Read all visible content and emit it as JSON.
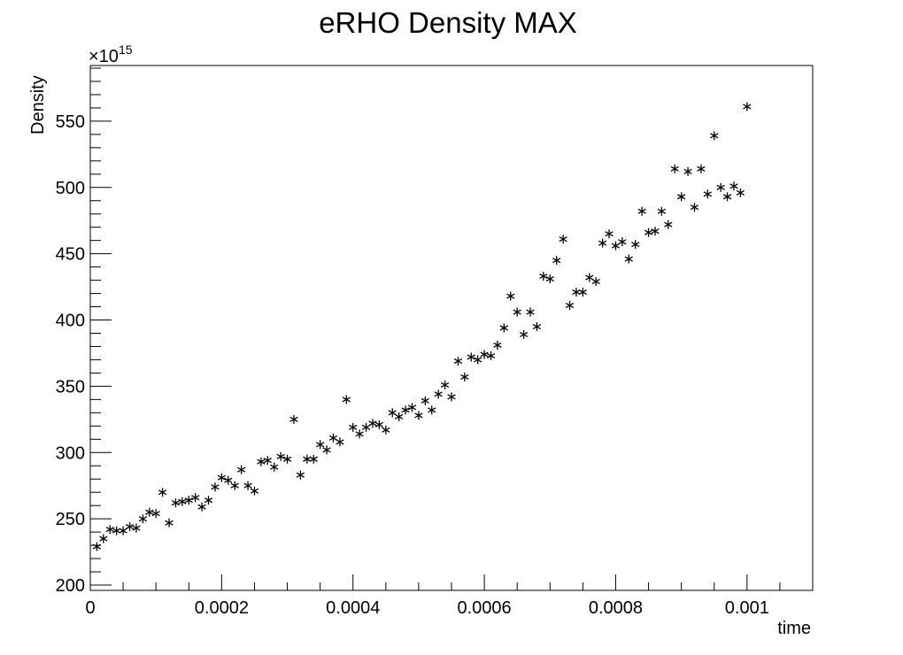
{
  "chart_data": {
    "type": "scatter",
    "title": "eRHO Density MAX",
    "xlabel": "time",
    "ylabel": "Density",
    "y_multiplier_base": "×10",
    "y_multiplier_exponent": "15",
    "xlim": [
      0,
      0.0011
    ],
    "ylim": [
      196,
      592
    ],
    "x_tick_values": [
      0,
      0.0002,
      0.0004,
      0.0006,
      0.0008,
      0.001
    ],
    "x_tick_labels": [
      "0",
      "0.0002",
      "0.0004",
      "0.0006",
      "0.0008",
      "0.001"
    ],
    "y_tick_values": [
      200,
      250,
      300,
      350,
      400,
      450,
      500,
      550
    ],
    "y_tick_labels": [
      "200",
      "250",
      "300",
      "350",
      "400",
      "450",
      "500",
      "550"
    ],
    "marker": "asterisk",
    "marker_color": "#000000",
    "grid": false,
    "series": [
      {
        "x": [
          1e-05,
          2e-05,
          3e-05,
          4e-05,
          5e-05,
          6e-05,
          7e-05,
          8e-05,
          9e-05,
          0.0001,
          0.00011,
          0.00012,
          0.00013,
          0.00014,
          0.00015,
          0.00016,
          0.00017,
          0.00018,
          0.00019,
          0.0002,
          0.00021,
          0.00022,
          0.00023,
          0.00024,
          0.00025,
          0.00026,
          0.00027,
          0.00028,
          0.00029,
          0.0003,
          0.00031,
          0.00032,
          0.00033,
          0.00034,
          0.00035,
          0.00036,
          0.00037,
          0.00038,
          0.00039,
          0.0004,
          0.00041,
          0.00042,
          0.00043,
          0.00044,
          0.00045,
          0.00046,
          0.00047,
          0.00048,
          0.00049,
          0.0005,
          0.00051,
          0.00052,
          0.00053,
          0.00054,
          0.00055,
          0.00056,
          0.00057,
          0.00058,
          0.00059,
          0.0006,
          0.00061,
          0.00062,
          0.00063,
          0.00064,
          0.00065,
          0.00066,
          0.00067,
          0.00068,
          0.00069,
          0.0007,
          0.00071,
          0.00072,
          0.00073,
          0.00074,
          0.00075,
          0.00076,
          0.00077,
          0.00078,
          0.00079,
          0.0008,
          0.00081,
          0.00082,
          0.00083,
          0.00084,
          0.00085,
          0.00086,
          0.00087,
          0.00088,
          0.00089,
          0.0009,
          0.00091,
          0.00092,
          0.00093,
          0.00094,
          0.00095,
          0.00096,
          0.00097,
          0.00098,
          0.00099,
          0.001
        ],
        "y": [
          229,
          235,
          242,
          241,
          241,
          244,
          243,
          250,
          255,
          254,
          270,
          247,
          262,
          263,
          264,
          266,
          259,
          264,
          274,
          281,
          279,
          275,
          287,
          275,
          271,
          293,
          294,
          289,
          297,
          295,
          325,
          283,
          295,
          295,
          306,
          302,
          311,
          308,
          340,
          319,
          314,
          319,
          322,
          321,
          317,
          330,
          327,
          332,
          334,
          328,
          339,
          332,
          344,
          351,
          342,
          369,
          357,
          372,
          370,
          374,
          373,
          381,
          394,
          418,
          406,
          389,
          406,
          395,
          433,
          431,
          445,
          461,
          411,
          421,
          421,
          432,
          429,
          458,
          465,
          456,
          459,
          446,
          457,
          482,
          466,
          467,
          482,
          472,
          514,
          493,
          512,
          485,
          514,
          495,
          539,
          500,
          493,
          501,
          496,
          561
        ]
      }
    ]
  }
}
